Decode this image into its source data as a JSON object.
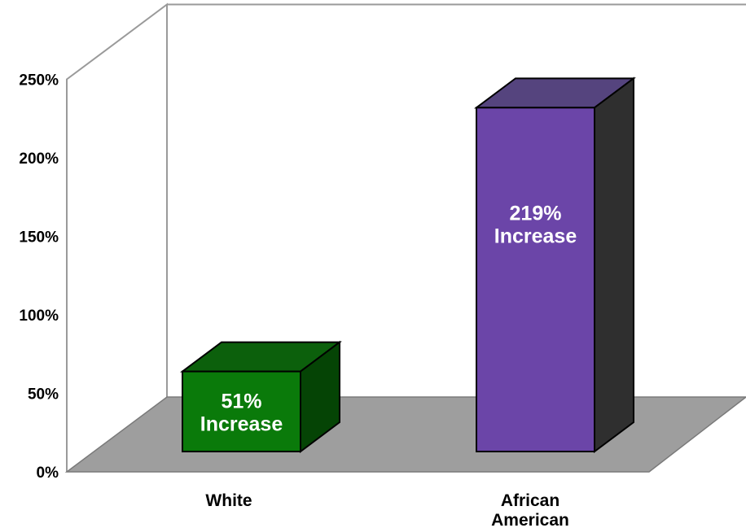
{
  "chart_data": {
    "type": "bar",
    "categories": [
      "White",
      "African American"
    ],
    "category_lines": [
      [
        "White"
      ],
      [
        "African",
        "American"
      ]
    ],
    "values": [
      51,
      219
    ],
    "data_labels": [
      [
        "51%",
        "Increase"
      ],
      [
        "219%",
        "Increase"
      ]
    ],
    "ylim": [
      0,
      250
    ],
    "yticks": [
      "0%",
      "50%",
      "100%",
      "150%",
      "200%",
      "250%"
    ],
    "grid": false,
    "legend": "none",
    "style": "3d",
    "colors": {
      "bars": [
        {
          "front": "#0A7A0A",
          "top": "#0C600C",
          "side": "#054405"
        },
        {
          "front": "#6B45A8",
          "top": "#55447E",
          "side": "#2F2F2F"
        }
      ],
      "floor": "#9E9E9E",
      "walls": "#A0A0A0"
    }
  }
}
